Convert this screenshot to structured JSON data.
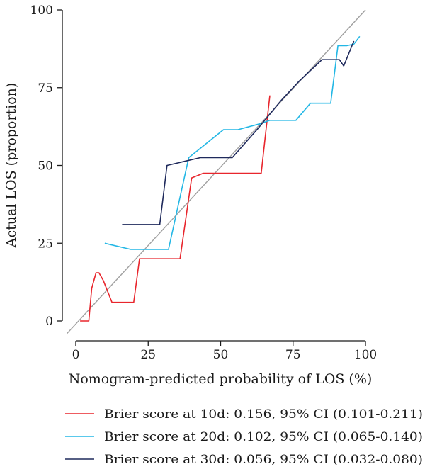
{
  "chart_data": {
    "type": "line",
    "xlabel": "Nomogram-predicted probability of LOS (%)",
    "ylabel": "Actual LOS (proportion)",
    "xlim": [
      0,
      100
    ],
    "ylim": [
      0,
      100
    ],
    "xticks": [
      0,
      25,
      50,
      75,
      100
    ],
    "yticks": [
      0,
      25,
      50,
      75,
      100
    ],
    "reference_line": {
      "x": [
        -3,
        100
      ],
      "y": [
        -4,
        100
      ],
      "color": "#a0a0a0"
    },
    "legend_position": "bottom",
    "series": [
      {
        "name": "Brier score at 10d: 0.156, 95% CI (0.101-0.211)",
        "color": "#e8262d",
        "x": [
          1.5,
          4.5,
          5.5,
          7,
          8,
          9.5,
          12.5,
          20,
          22,
          36,
          40,
          44,
          58,
          64,
          67
        ],
        "y": [
          0,
          0,
          10.5,
          15.5,
          15.5,
          13,
          6,
          6,
          20,
          20,
          46,
          47.5,
          47.5,
          47.5,
          72.5
        ]
      },
      {
        "name": "Brier score at 20d: 0.102, 95% CI (0.065-0.140)",
        "color": "#23b7e5",
        "x": [
          10,
          19,
          32,
          39,
          51,
          56,
          64,
          67,
          76,
          81,
          88,
          90.5,
          93.5,
          96,
          98
        ],
        "y": [
          25,
          23,
          23,
          52.5,
          61.5,
          61.5,
          63.5,
          64.5,
          64.5,
          70,
          70,
          88.5,
          88.5,
          89,
          91.5
        ]
      },
      {
        "name": "Brier score at 30d: 0.056, 95% CI (0.032-0.080)",
        "color": "#1f2a5c",
        "x": [
          16,
          29,
          31.5,
          43,
          54,
          63,
          71,
          77,
          85,
          91,
          92.5,
          96
        ],
        "y": [
          31,
          31,
          50,
          52.5,
          52.5,
          62,
          71,
          77,
          84,
          84,
          82,
          90
        ]
      }
    ]
  }
}
